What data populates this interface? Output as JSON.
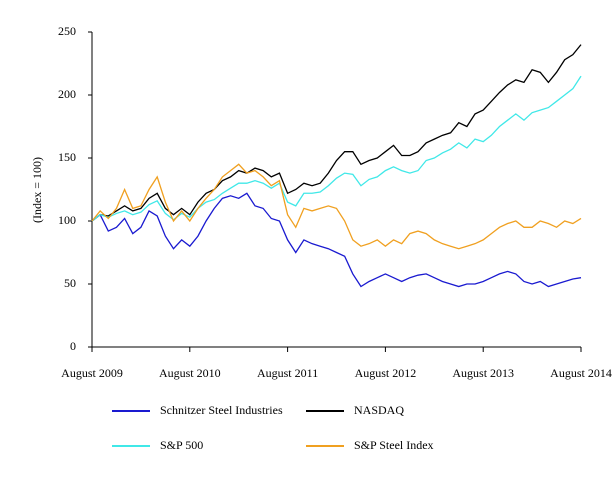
{
  "chart_data": {
    "type": "line",
    "y_label": "(Index = 100)",
    "categories": [
      "August 2009",
      null,
      null,
      null,
      null,
      null,
      null,
      null,
      null,
      null,
      null,
      null,
      "August 2010",
      null,
      null,
      null,
      null,
      null,
      null,
      null,
      null,
      null,
      null,
      null,
      "August 2011",
      null,
      null,
      null,
      null,
      null,
      null,
      null,
      null,
      null,
      null,
      null,
      "August 2012",
      null,
      null,
      null,
      null,
      null,
      null,
      null,
      null,
      null,
      null,
      null,
      "August 2013",
      null,
      null,
      null,
      null,
      null,
      null,
      null,
      null,
      null,
      null,
      null,
      "August 2014"
    ],
    "ylim": [
      0,
      250
    ],
    "yticks": [
      0,
      50,
      100,
      150,
      200,
      250
    ],
    "series": [
      {
        "name": "Schnitzer Steel Industries",
        "color": "#1a1ad0",
        "values": [
          100,
          105,
          92,
          95,
          102,
          90,
          95,
          108,
          104,
          88,
          78,
          85,
          80,
          88,
          100,
          110,
          118,
          120,
          118,
          122,
          112,
          110,
          102,
          100,
          85,
          75,
          85,
          82,
          80,
          78,
          75,
          72,
          58,
          48,
          52,
          55,
          58,
          55,
          52,
          55,
          57,
          58,
          55,
          52,
          50,
          48,
          50,
          50,
          52,
          55,
          58,
          60,
          58,
          52,
          50,
          52,
          48,
          50,
          52,
          54,
          55
        ]
      },
      {
        "name": "NASDAQ",
        "color": "#000000",
        "values": [
          100,
          105,
          104,
          108,
          112,
          108,
          110,
          118,
          122,
          110,
          105,
          110,
          105,
          115,
          122,
          125,
          132,
          135,
          140,
          138,
          142,
          140,
          135,
          138,
          122,
          125,
          130,
          128,
          130,
          138,
          148,
          155,
          155,
          145,
          148,
          150,
          155,
          160,
          152,
          152,
          155,
          162,
          165,
          168,
          170,
          178,
          175,
          185,
          188,
          195,
          202,
          208,
          212,
          210,
          220,
          218,
          210,
          218,
          228,
          232,
          240
        ]
      },
      {
        "name": "S&P 500",
        "color": "#40e8e8",
        "values": [
          100,
          105,
          103,
          106,
          108,
          105,
          107,
          113,
          116,
          106,
          101,
          106,
          103,
          110,
          115,
          117,
          122,
          126,
          130,
          130,
          132,
          130,
          126,
          130,
          115,
          112,
          122,
          122,
          123,
          128,
          134,
          138,
          137,
          128,
          133,
          135,
          140,
          143,
          140,
          138,
          140,
          148,
          150,
          154,
          157,
          162,
          158,
          165,
          163,
          168,
          175,
          180,
          185,
          180,
          186,
          188,
          190,
          195,
          200,
          205,
          215
        ]
      },
      {
        "name": "S&P  Steel Index",
        "color": "#f0a020",
        "values": [
          100,
          108,
          102,
          110,
          125,
          110,
          112,
          125,
          135,
          115,
          100,
          108,
          100,
          110,
          118,
          125,
          135,
          140,
          145,
          138,
          140,
          135,
          128,
          132,
          105,
          95,
          110,
          108,
          110,
          112,
          110,
          100,
          85,
          80,
          82,
          85,
          80,
          85,
          82,
          90,
          92,
          90,
          85,
          82,
          80,
          78,
          80,
          82,
          85,
          90,
          95,
          98,
          100,
          95,
          95,
          100,
          98,
          95,
          100,
          98,
          102
        ]
      }
    ]
  }
}
